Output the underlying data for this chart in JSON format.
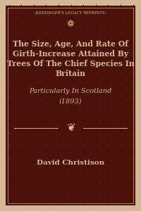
{
  "border_color": "#d4b896",
  "cover_bg": "#4a1208",
  "pattern_color": "#3d0e06",
  "text_color": "#d4b896",
  "header_text": "–KESSINGER’S LEGACY REPRINTS–",
  "title_line1": "The Size, Age, And Rate Of",
  "title_line2": "Girth-Increase Attained By",
  "title_line3": "Trees Of The Chief Species In",
  "title_line4": "Britain",
  "subtitle_line1": "Particularly In Scotland",
  "subtitle_line2": "(1893)",
  "author": "David Christison",
  "figsize": [
    2.0,
    3.0
  ],
  "dpi": 100
}
